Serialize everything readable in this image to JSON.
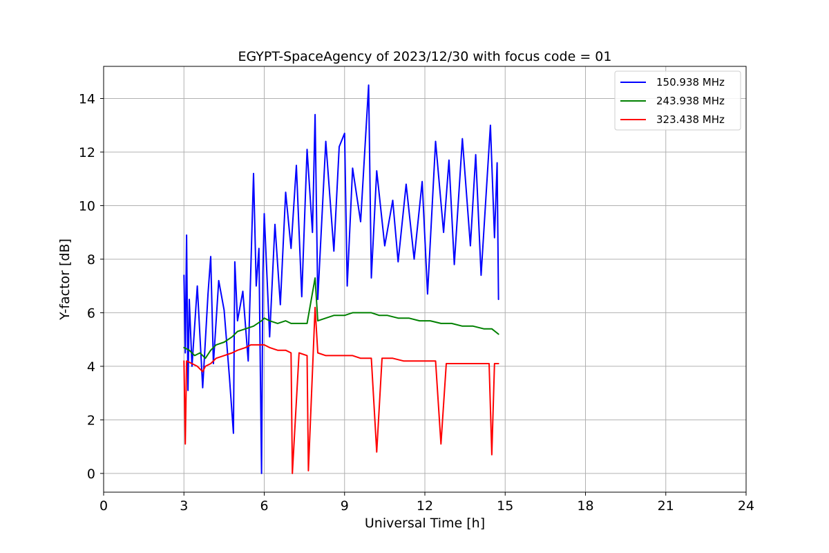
{
  "chart_data": {
    "type": "line",
    "title": "EGYPT-SpaceAgency of 2023/12/30 with focus code = 01",
    "xlabel": "Universal Time [h]",
    "ylabel": "Y-factor [dB]",
    "xlim": [
      0,
      24
    ],
    "ylim": [
      -0.7,
      15.2
    ],
    "xticks": [
      0,
      3,
      6,
      9,
      12,
      15,
      18,
      21,
      24
    ],
    "yticks": [
      0,
      2,
      4,
      6,
      8,
      10,
      12,
      14
    ],
    "grid": true,
    "legend_position": "top-right",
    "series": [
      {
        "name": "150.938 MHz",
        "color": "#0000ff",
        "x": [
          3.0,
          3.05,
          3.1,
          3.15,
          3.2,
          3.3,
          3.5,
          3.7,
          3.9,
          4.0,
          4.1,
          4.3,
          4.5,
          4.7,
          4.85,
          4.9,
          5.0,
          5.2,
          5.4,
          5.6,
          5.7,
          5.8,
          5.9,
          5.95,
          6.0,
          6.2,
          6.4,
          6.6,
          6.8,
          7.0,
          7.2,
          7.4,
          7.6,
          7.8,
          7.9,
          8.0,
          8.3,
          8.6,
          8.8,
          9.0,
          9.1,
          9.3,
          9.6,
          9.9,
          10.0,
          10.2,
          10.5,
          10.8,
          11.0,
          11.3,
          11.6,
          11.9,
          12.1,
          12.4,
          12.7,
          12.9,
          13.1,
          13.4,
          13.7,
          13.9,
          14.1,
          14.3,
          14.45,
          14.6,
          14.7,
          14.75
        ],
        "y": [
          7.4,
          4.5,
          8.9,
          3.1,
          6.5,
          4.0,
          7.0,
          3.2,
          6.7,
          8.1,
          4.1,
          7.2,
          6.1,
          3.6,
          1.5,
          7.9,
          5.7,
          6.8,
          4.2,
          11.2,
          7.0,
          8.4,
          0.0,
          7.5,
          9.7,
          5.1,
          9.3,
          6.3,
          10.5,
          8.4,
          11.5,
          6.6,
          12.1,
          9.0,
          13.4,
          6.5,
          12.4,
          8.3,
          12.2,
          12.7,
          7.0,
          11.4,
          9.4,
          14.5,
          7.3,
          11.3,
          8.5,
          10.2,
          7.9,
          10.8,
          8.0,
          10.9,
          6.7,
          12.4,
          9.0,
          11.7,
          7.8,
          12.5,
          8.5,
          11.9,
          7.4,
          10.6,
          13.0,
          8.8,
          11.6,
          6.5
        ]
      },
      {
        "name": "243.938 MHz",
        "color": "#008000",
        "x": [
          3.0,
          3.2,
          3.4,
          3.6,
          3.8,
          4.0,
          4.2,
          4.5,
          4.8,
          5.0,
          5.3,
          5.6,
          5.9,
          6.0,
          6.2,
          6.5,
          6.8,
          7.0,
          7.3,
          7.6,
          7.9,
          8.0,
          8.3,
          8.6,
          9.0,
          9.3,
          9.6,
          10.0,
          10.3,
          10.6,
          11.0,
          11.4,
          11.8,
          12.2,
          12.6,
          13.0,
          13.4,
          13.8,
          14.2,
          14.5,
          14.75
        ],
        "y": [
          4.7,
          4.6,
          4.4,
          4.5,
          4.3,
          4.6,
          4.8,
          4.9,
          5.1,
          5.3,
          5.4,
          5.5,
          5.7,
          5.8,
          5.7,
          5.6,
          5.7,
          5.6,
          5.6,
          5.6,
          7.3,
          5.7,
          5.8,
          5.9,
          5.9,
          6.0,
          6.0,
          6.0,
          5.9,
          5.9,
          5.8,
          5.8,
          5.7,
          5.7,
          5.6,
          5.6,
          5.5,
          5.5,
          5.4,
          5.4,
          5.2
        ]
      },
      {
        "name": "323.438 MHz",
        "color": "#ff0000",
        "x": [
          3.0,
          3.05,
          3.1,
          3.3,
          3.5,
          3.7,
          3.8,
          4.0,
          4.2,
          4.5,
          4.8,
          5.0,
          5.3,
          5.5,
          5.8,
          6.0,
          6.2,
          6.5,
          6.8,
          7.0,
          7.05,
          7.3,
          7.6,
          7.65,
          7.9,
          8.0,
          8.3,
          8.6,
          9.0,
          9.3,
          9.6,
          10.0,
          10.2,
          10.4,
          10.8,
          11.2,
          11.6,
          12.0,
          12.4,
          12.6,
          12.8,
          13.2,
          13.6,
          14.0,
          14.4,
          14.5,
          14.6,
          14.75
        ],
        "y": [
          4.2,
          1.1,
          4.2,
          4.1,
          4.0,
          3.8,
          4.0,
          4.1,
          4.3,
          4.4,
          4.5,
          4.6,
          4.7,
          4.8,
          4.8,
          4.8,
          4.7,
          4.6,
          4.6,
          4.5,
          0.0,
          4.5,
          4.4,
          0.1,
          6.2,
          4.5,
          4.4,
          4.4,
          4.4,
          4.4,
          4.3,
          4.3,
          0.8,
          4.3,
          4.3,
          4.2,
          4.2,
          4.2,
          4.2,
          1.1,
          4.1,
          4.1,
          4.1,
          4.1,
          4.1,
          0.7,
          4.1,
          4.1
        ]
      }
    ]
  }
}
